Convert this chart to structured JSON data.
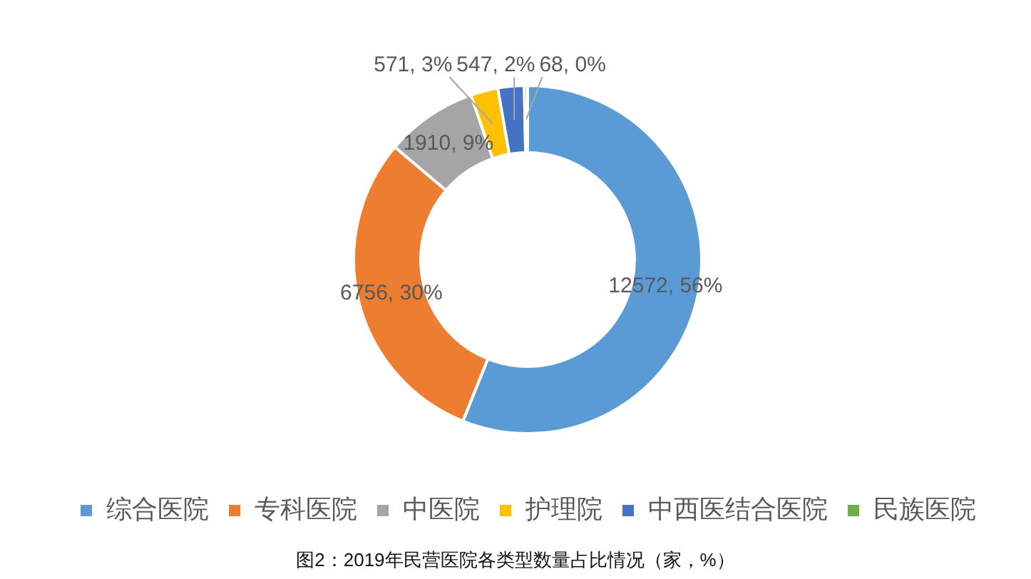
{
  "chart_data": {
    "type": "donut",
    "categories": [
      "综合医院",
      "专科医院",
      "中医院",
      "护理院",
      "中西医结合医院",
      "民族医院"
    ],
    "values": [
      12572,
      6756,
      1910,
      571,
      547,
      68
    ],
    "colors": [
      "#5b9bd5",
      "#ed7d31",
      "#a5a5a5",
      "#ffc000",
      "#4472c4",
      "#70ad47"
    ],
    "value_labels": [
      "12572, 56%",
      "6756, 30%",
      "1910, 9%",
      "571, 3%",
      "547, 2%",
      "68, 0%"
    ],
    "legend": "bottom",
    "annotations": [
      "图2：2019年民营医院各类型数量占比情况（家，%）"
    ]
  }
}
